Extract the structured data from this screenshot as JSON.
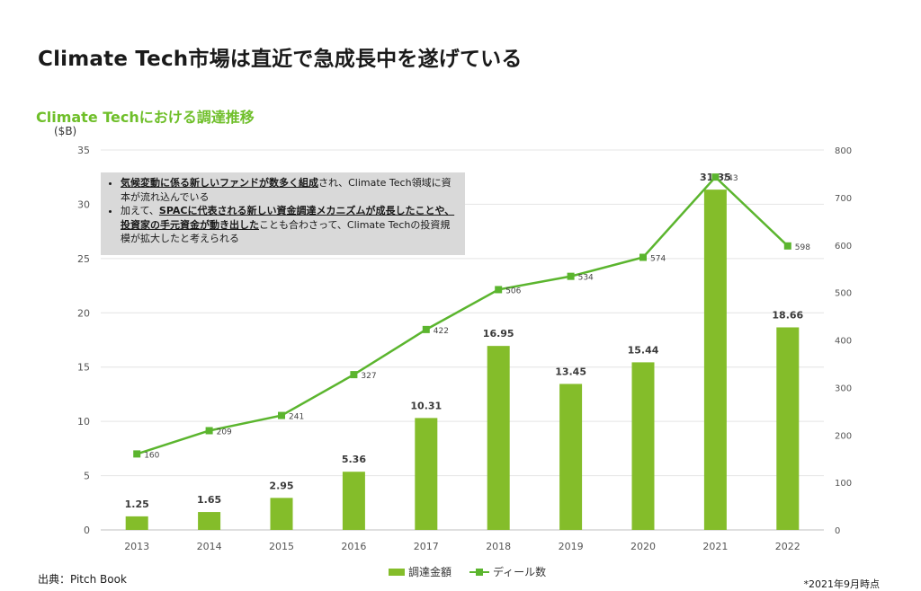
{
  "page_title": "Climate Tech市場は直近で急成長中を遂げている",
  "chart_data": {
    "type": "bar",
    "title": "Climate Techにおける調達推移",
    "ylabel": "($B)",
    "y2label": "",
    "categories": [
      "2013",
      "2014",
      "2015",
      "2016",
      "2017",
      "2018",
      "2019",
      "2020",
      "2021",
      "2022"
    ],
    "ylim": [
      0,
      35
    ],
    "y_ticks": [
      0,
      5,
      10,
      15,
      20,
      25,
      30,
      35
    ],
    "y2lim": [
      0,
      800
    ],
    "y2_ticks": [
      0,
      100,
      200,
      300,
      400,
      500,
      600,
      700,
      800
    ],
    "series": [
      {
        "name": "調達金額",
        "type": "bar",
        "axis": "left",
        "color": "#84bd2a",
        "values": [
          1.25,
          1.65,
          2.95,
          5.36,
          10.31,
          16.95,
          13.45,
          15.44,
          31.35,
          18.66
        ],
        "labels": [
          "1.25",
          "1.65",
          "2.95",
          "5.36",
          "10.31",
          "16.95",
          "13.45",
          "15.44",
          "31.35",
          "18.66"
        ]
      },
      {
        "name": "ディール数",
        "type": "line",
        "axis": "right",
        "color": "#5bb52e",
        "values": [
          160,
          209,
          241,
          327,
          422,
          506,
          534,
          574,
          743,
          598
        ]
      }
    ],
    "grid": true,
    "legend_position": "bottom"
  },
  "note": {
    "items": [
      {
        "emphasis": "気候変動に係る新しいファンドが数多く組成",
        "rest": "され、Climate Tech領域に資本が流れ込んでいる"
      },
      {
        "prefix": "加えて、",
        "emphasis": "SPACに代表される新しい資金調達メカニズムが成長したことや、投資家の手元資金が動き出した",
        "rest": "ことも合わさって、Climate Techの投資規模が拡大したと考えられる"
      }
    ]
  },
  "source": "出典：Pitch Book",
  "footnote": "*2021年9月時点"
}
